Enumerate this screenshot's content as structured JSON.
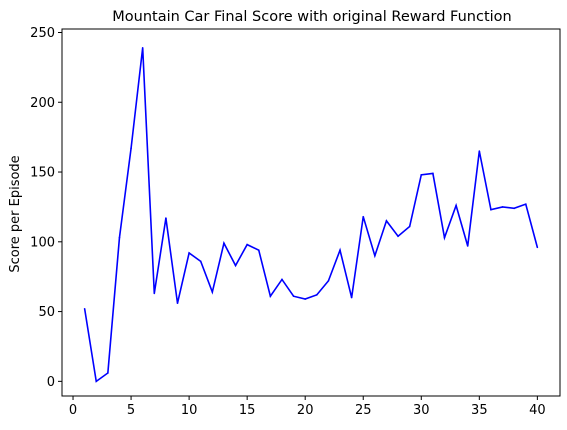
{
  "chart_data": {
    "type": "line",
    "title": "Mountain Car Final Score with original Reward Function",
    "xlabel": "",
    "ylabel": "Score per Episode",
    "xlim": [
      -0.95,
      41.95
    ],
    "ylim": [
      -10.5,
      252.5
    ],
    "xticks": [
      0,
      5,
      10,
      15,
      20,
      25,
      30,
      35,
      40
    ],
    "yticks": [
      0,
      50,
      100,
      150,
      200,
      250
    ],
    "grid": false,
    "line_color": "#0000ff",
    "series": [
      {
        "x": [
          1,
          2,
          3,
          4,
          5,
          6,
          7,
          8,
          9,
          10,
          11,
          12,
          13,
          14,
          15,
          16,
          17,
          18,
          19,
          20,
          21,
          22,
          23,
          24,
          25,
          26,
          27,
          28,
          29,
          30,
          31,
          32,
          33,
          34,
          35,
          36,
          37,
          38,
          39,
          40
        ],
        "values": [
          52,
          0,
          6,
          103,
          167,
          239,
          63,
          117,
          56,
          92,
          86,
          64,
          99,
          83,
          98,
          94,
          61,
          73,
          61,
          59,
          62,
          72,
          94,
          60,
          118,
          90,
          115,
          104,
          111,
          148,
          149,
          103,
          126,
          97,
          165,
          123,
          125,
          124,
          127,
          96
        ]
      }
    ]
  }
}
